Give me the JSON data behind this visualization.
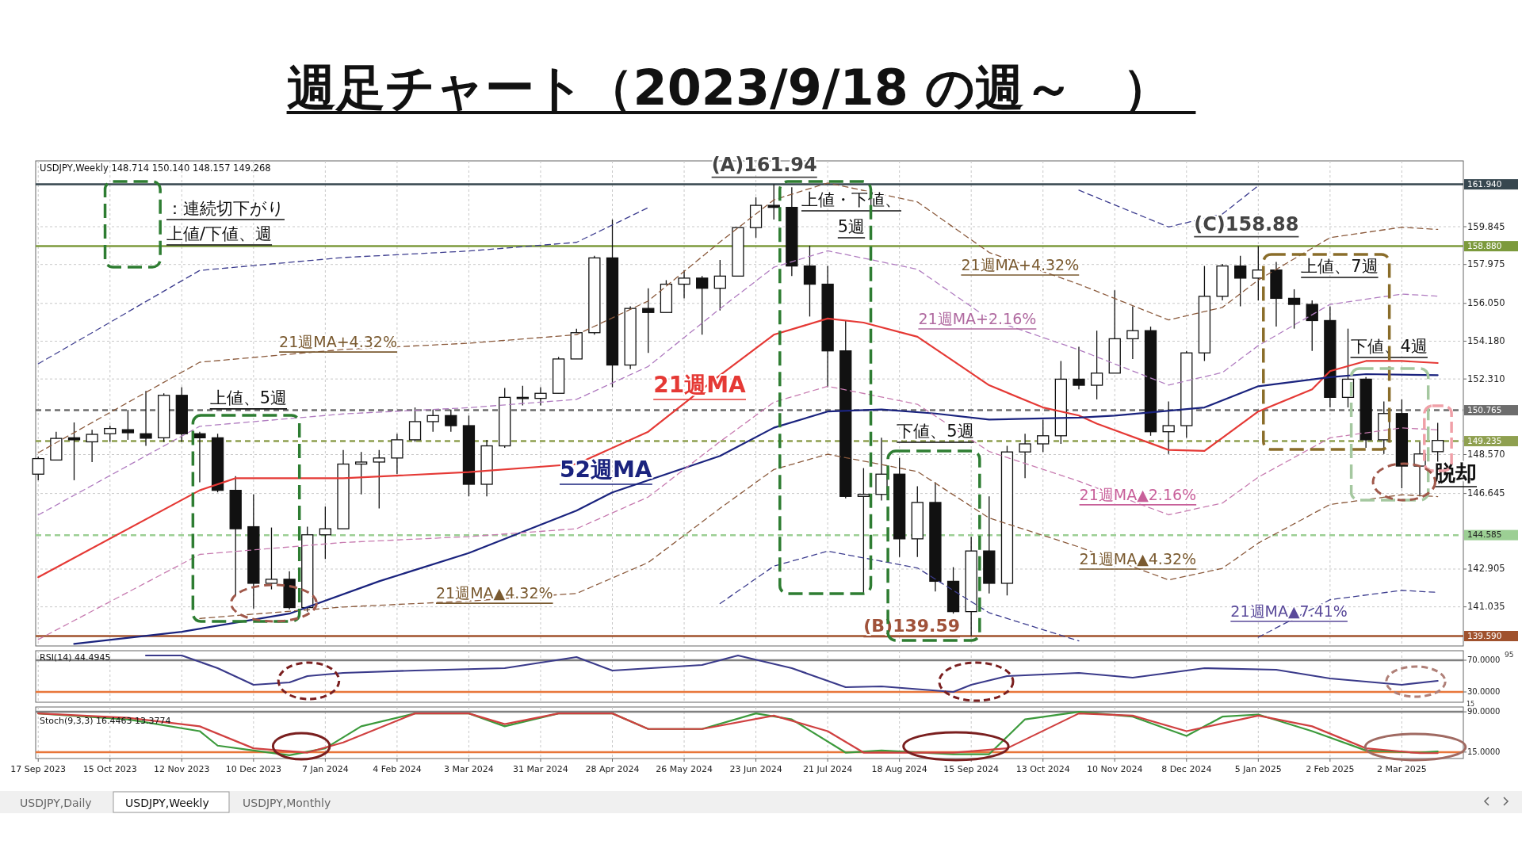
{
  "chart_data": [
    {
      "type": "candlestick",
      "title": "週足チャート（2023/9/18 の週～　）",
      "subtitle": "USDJPY,Weekly  148.714 150.140 148.157 149.268",
      "x": [
        "2023-09-17",
        "2023-09-24",
        "2023-10-01",
        "2023-10-08",
        "2023-10-15",
        "2023-10-22",
        "2023-10-29",
        "2023-11-05",
        "2023-11-12",
        "2023-11-19",
        "2023-11-26",
        "2023-12-03",
        "2023-12-10",
        "2023-12-17",
        "2023-12-24",
        "2023-12-31",
        "2024-01-07",
        "2024-01-14",
        "2024-01-21",
        "2024-01-28",
        "2024-02-04",
        "2024-02-11",
        "2024-02-18",
        "2024-02-25",
        "2024-03-03",
        "2024-03-10",
        "2024-03-17",
        "2024-03-24",
        "2024-03-31",
        "2024-04-07",
        "2024-04-14",
        "2024-04-21",
        "2024-04-28",
        "2024-05-05",
        "2024-05-12",
        "2024-05-19",
        "2024-05-26",
        "2024-06-02",
        "2024-06-09",
        "2024-06-16",
        "2024-06-23",
        "2024-06-30",
        "2024-07-07",
        "2024-07-14",
        "2024-07-21",
        "2024-07-28",
        "2024-08-04",
        "2024-08-11",
        "2024-08-18",
        "2024-08-25",
        "2024-09-01",
        "2024-09-08",
        "2024-09-15",
        "2024-09-22",
        "2024-09-29",
        "2024-10-06",
        "2024-10-13",
        "2024-10-20",
        "2024-10-27",
        "2024-11-03",
        "2024-11-10",
        "2024-11-17",
        "2024-11-24",
        "2024-12-01",
        "2024-12-08",
        "2024-12-15",
        "2024-12-22",
        "2024-12-29",
        "2025-01-05",
        "2025-01-12",
        "2025-01-19",
        "2025-01-26",
        "2025-02-02",
        "2025-02-09",
        "2025-02-16",
        "2025-02-23",
        "2025-03-02",
        "2025-03-09",
        "2025-03-16"
      ],
      "ohlc": [
        [
          147.6,
          148.46,
          147.3,
          148.37
        ],
        [
          148.3,
          149.7,
          148.3,
          149.37
        ],
        [
          149.4,
          150.16,
          147.3,
          149.3
        ],
        [
          149.2,
          149.8,
          148.2,
          149.57
        ],
        [
          149.6,
          150.0,
          149.2,
          149.86
        ],
        [
          149.8,
          150.78,
          149.3,
          149.65
        ],
        [
          149.6,
          151.72,
          149.0,
          149.38
        ],
        [
          149.4,
          151.6,
          149.2,
          151.5
        ],
        [
          151.5,
          151.9,
          149.2,
          149.6
        ],
        [
          149.6,
          149.7,
          147.2,
          149.4
        ],
        [
          149.4,
          149.6,
          146.7,
          146.8
        ],
        [
          146.8,
          147.5,
          141.6,
          144.9
        ],
        [
          145.0,
          146.6,
          140.95,
          142.2
        ],
        [
          142.2,
          144.96,
          141.9,
          142.4
        ],
        [
          142.4,
          142.8,
          140.9,
          141.0
        ],
        [
          141.0,
          145.0,
          140.8,
          144.6
        ],
        [
          144.6,
          146.0,
          143.4,
          144.9
        ],
        [
          144.9,
          148.8,
          144.9,
          148.1
        ],
        [
          148.1,
          148.7,
          146.6,
          148.2
        ],
        [
          148.2,
          148.8,
          145.9,
          148.4
        ],
        [
          148.4,
          149.6,
          147.6,
          149.3
        ],
        [
          149.3,
          150.9,
          149.2,
          150.2
        ],
        [
          150.2,
          150.8,
          149.7,
          150.5
        ],
        [
          150.5,
          150.8,
          149.7,
          150.0
        ],
        [
          150.0,
          150.5,
          146.5,
          147.1
        ],
        [
          147.1,
          149.3,
          146.5,
          149.0
        ],
        [
          149.0,
          151.86,
          148.9,
          151.4
        ],
        [
          151.4,
          151.97,
          151.0,
          151.35
        ],
        [
          151.35,
          151.9,
          151.0,
          151.6
        ],
        [
          151.6,
          153.4,
          151.6,
          153.3
        ],
        [
          153.3,
          154.8,
          153.3,
          154.6
        ],
        [
          154.6,
          158.4,
          154.5,
          158.3
        ],
        [
          158.3,
          160.2,
          151.9,
          153.0
        ],
        [
          153.0,
          155.9,
          152.8,
          155.8
        ],
        [
          155.8,
          156.8,
          153.6,
          155.6
        ],
        [
          155.6,
          157.2,
          155.6,
          157.0
        ],
        [
          157.0,
          157.7,
          156.3,
          157.3
        ],
        [
          157.3,
          157.4,
          154.5,
          156.8
        ],
        [
          156.8,
          158.2,
          155.7,
          157.4
        ],
        [
          157.4,
          159.8,
          157.4,
          159.8
        ],
        [
          159.8,
          161.3,
          159.3,
          160.9
        ],
        [
          160.9,
          161.94,
          160.2,
          160.8
        ],
        [
          160.8,
          161.8,
          157.4,
          157.9
        ],
        [
          157.9,
          158.9,
          155.4,
          157.0
        ],
        [
          157.0,
          157.9,
          151.9,
          153.7
        ],
        [
          153.7,
          155.2,
          146.4,
          146.5
        ],
        [
          146.5,
          147.9,
          141.7,
          146.6
        ],
        [
          146.6,
          149.4,
          146.3,
          147.6
        ],
        [
          147.6,
          148.4,
          143.5,
          144.4
        ],
        [
          144.4,
          147.0,
          143.5,
          146.2
        ],
        [
          146.2,
          147.2,
          141.8,
          142.3
        ],
        [
          142.3,
          143.0,
          140.7,
          140.8
        ],
        [
          140.8,
          144.5,
          139.59,
          143.8
        ],
        [
          143.8,
          146.5,
          141.7,
          142.2
        ],
        [
          142.2,
          149.0,
          141.6,
          148.7
        ],
        [
          148.7,
          149.6,
          147.4,
          149.1
        ],
        [
          149.1,
          150.3,
          148.7,
          149.5
        ],
        [
          149.5,
          153.2,
          149.1,
          152.3
        ],
        [
          152.3,
          153.9,
          151.8,
          152.0
        ],
        [
          152.0,
          154.7,
          151.3,
          152.6
        ],
        [
          152.6,
          156.7,
          152.6,
          154.3
        ],
        [
          154.3,
          155.9,
          153.3,
          154.7
        ],
        [
          154.7,
          154.9,
          149.5,
          149.7
        ],
        [
          149.7,
          151.2,
          148.6,
          150.0
        ],
        [
          150.0,
          153.7,
          149.4,
          153.6
        ],
        [
          153.6,
          157.9,
          153.2,
          156.4
        ],
        [
          156.4,
          158.0,
          156.2,
          157.9
        ],
        [
          157.9,
          158.4,
          155.9,
          157.3
        ],
        [
          157.3,
          158.88,
          156.2,
          157.7
        ],
        [
          157.7,
          158.1,
          154.9,
          156.3
        ],
        [
          156.3,
          156.75,
          154.8,
          156.0
        ],
        [
          156.0,
          156.2,
          153.7,
          155.2
        ],
        [
          155.2,
          155.9,
          150.9,
          151.4
        ],
        [
          151.4,
          154.8,
          150.9,
          152.3
        ],
        [
          152.3,
          152.4,
          148.9,
          149.3
        ],
        [
          149.3,
          151.2,
          148.6,
          150.6
        ],
        [
          150.6,
          151.3,
          146.9,
          148.0
        ],
        [
          148.0,
          149.2,
          146.5,
          148.6
        ],
        [
          148.714,
          150.14,
          148.157,
          149.268
        ]
      ],
      "series": [
        {
          "type": "line",
          "color": "#e53935",
          "x": [
            "2023-09-17",
            "2023-11-19",
            "2023-12-03",
            "2024-01-14",
            "2024-03-03",
            "2024-04-14",
            "2024-05-12",
            "2024-06-09",
            "2024-06-30",
            "2024-07-21",
            "2024-08-04",
            "2024-08-25",
            "2024-09-08",
            "2024-09-22",
            "2024-10-13",
            "2024-10-27",
            "2024-11-03",
            "2024-12-01",
            "2024-12-15",
            "2024-12-22",
            "2025-01-05",
            "2025-01-26",
            "2025-02-02",
            "2025-02-16",
            "2025-03-02",
            "2025-03-16"
          ],
          "values": [
            142.5,
            146.8,
            147.4,
            147.4,
            147.7,
            148.1,
            149.7,
            152.5,
            154.5,
            155.3,
            155.1,
            154.4,
            153.2,
            152.0,
            150.9,
            150.5,
            150.1,
            148.8,
            148.75,
            149.4,
            150.7,
            151.8,
            152.7,
            153.2,
            153.2,
            153.1
          ]
        },
        {
          "type": "line",
          "color": "#1a237e",
          "x": [
            "2023-10-01",
            "2023-11-12",
            "2023-12-24",
            "2024-01-28",
            "2024-03-03",
            "2024-04-14",
            "2024-04-28",
            "2024-06-09",
            "2024-06-30",
            "2024-07-21",
            "2024-08-11",
            "2024-09-01",
            "2024-09-22",
            "2024-10-27",
            "2024-11-10",
            "2024-12-15",
            "2025-01-05",
            "2025-02-02",
            "2025-02-16",
            "2025-03-16"
          ],
          "values": [
            139.2,
            139.8,
            140.7,
            142.3,
            143.7,
            145.8,
            146.7,
            148.5,
            149.9,
            150.7,
            150.8,
            150.6,
            150.3,
            150.4,
            150.5,
            150.9,
            151.95,
            152.4,
            152.55,
            152.5
          ]
        },
        {
          "type": "line",
          "color": "#b07cc0",
          "line_style": "dashed",
          "x": [
            "2023-09-17",
            "2023-11-19",
            "2024-01-14",
            "2024-03-03",
            "2024-04-14",
            "2024-05-12",
            "2024-06-09",
            "2024-06-30",
            "2024-07-21",
            "2024-08-25",
            "2024-09-22",
            "2024-10-27",
            "2024-12-01",
            "2024-12-22",
            "2025-01-05",
            "2025-02-02",
            "2025-03-02",
            "2025-03-16"
          ],
          "values": [
            145.58,
            149.97,
            150.58,
            150.89,
            151.3,
            152.93,
            155.79,
            157.84,
            158.65,
            157.74,
            155.28,
            153.75,
            152.01,
            152.63,
            153.96,
            156.0,
            156.51,
            156.41
          ]
        },
        {
          "type": "line",
          "color": "#8b5a3c",
          "line_style": "dashed",
          "x": [
            "2023-09-17",
            "2023-11-19",
            "2024-01-14",
            "2024-03-03",
            "2024-04-14",
            "2024-05-12",
            "2024-06-09",
            "2024-06-30",
            "2024-07-21",
            "2024-08-25",
            "2024-09-22",
            "2024-10-27",
            "2024-12-01",
            "2024-12-22",
            "2025-01-05",
            "2025-02-02",
            "2025-03-02",
            "2025-03-16"
          ],
          "values": [
            148.66,
            153.14,
            153.77,
            154.08,
            154.5,
            156.17,
            159.09,
            161.17,
            162.01,
            161.07,
            158.57,
            157.0,
            155.23,
            155.85,
            157.21,
            159.3,
            159.82,
            159.71
          ]
        },
        {
          "type": "line",
          "color": "#c77bb0",
          "line_style": "dashed",
          "x": [
            "2023-09-17",
            "2023-11-19",
            "2024-01-14",
            "2024-03-03",
            "2024-04-14",
            "2024-05-12",
            "2024-06-09",
            "2024-06-30",
            "2024-07-21",
            "2024-08-25",
            "2024-09-22",
            "2024-10-27",
            "2024-12-01",
            "2024-12-22",
            "2025-01-05",
            "2025-02-02",
            "2025-03-02",
            "2025-03-16"
          ],
          "values": [
            139.42,
            143.63,
            144.22,
            144.51,
            144.9,
            146.47,
            149.21,
            151.16,
            151.95,
            151.06,
            148.72,
            147.25,
            145.59,
            146.17,
            147.45,
            149.4,
            149.89,
            149.79
          ]
        },
        {
          "type": "line",
          "color": "#8b5a3c",
          "line_style": "dashed",
          "x": [
            "2023-11-19",
            "2024-01-14",
            "2024-03-03",
            "2024-04-14",
            "2024-05-12",
            "2024-06-09",
            "2024-06-30",
            "2024-07-21",
            "2024-08-25",
            "2024-09-22",
            "2024-10-27",
            "2024-12-01",
            "2024-12-22",
            "2025-01-05",
            "2025-02-02",
            "2025-03-02",
            "2025-03-16"
          ],
          "values": [
            140.46,
            141.03,
            141.32,
            141.7,
            143.23,
            145.91,
            147.83,
            148.59,
            147.73,
            145.43,
            144.0,
            142.37,
            142.94,
            144.19,
            146.1,
            146.58,
            146.49
          ]
        },
        {
          "type": "line",
          "color": "#3d3d8f",
          "line_style": "dashed",
          "x": [
            "2024-06-09",
            "2024-06-30",
            "2024-07-21",
            "2024-08-25",
            "2024-09-22",
            "2024-10-27"
          ],
          "values": [
            141.2,
            143.05,
            143.79,
            142.96,
            140.74,
            139.35
          ]
        },
        {
          "type": "line",
          "color": "#3d3d8f",
          "line_style": "dashed",
          "x": [
            "2025-01-05",
            "2025-02-02",
            "2025-03-02",
            "2025-03-16"
          ],
          "values": [
            139.53,
            141.39,
            141.85,
            141.75
          ]
        },
        {
          "type": "line",
          "color": "#3d3d8f",
          "line_style": "dashed",
          "x": [
            "2023-09-17",
            "2023-11-19",
            "2024-01-14",
            "2024-03-03",
            "2024-04-14",
            "2024-05-12"
          ],
          "values": [
            153.06,
            157.68,
            158.32,
            158.64,
            159.07,
            160.79
          ]
        },
        {
          "type": "line",
          "color": "#3d3d8f",
          "line_style": "dashed",
          "x": [
            "2024-10-27",
            "2024-12-01",
            "2024-12-22",
            "2025-01-05"
          ],
          "values": [
            161.65,
            159.83,
            160.47,
            161.87
          ]
        }
      ],
      "xlim": [
        "2023-09-16",
        "2025-03-26"
      ],
      "ylim": [
        139.1,
        163.1
      ],
      "yticks": [
        {
          "value": 159.845,
          "label": "159.845"
        },
        {
          "value": 157.975,
          "label": "157.975"
        },
        {
          "value": 156.05,
          "label": "156.050"
        },
        {
          "value": 154.18,
          "label": "154.180"
        },
        {
          "value": 152.31,
          "label": "152.310"
        },
        {
          "value": 148.57,
          "label": "148.570"
        },
        {
          "value": 146.645,
          "label": "146.645"
        },
        {
          "value": 142.905,
          "label": "142.905"
        },
        {
          "value": 141.035,
          "label": "141.035"
        }
      ],
      "tick_labels": "y",
      "grid": true,
      "ref_lines": [
        {
          "axis": "y",
          "value": 161.94,
          "label": "161.940",
          "color": "#37474f",
          "line_style": "solid"
        },
        {
          "axis": "y",
          "value": 158.88,
          "label": "158.880",
          "color": "#7c9a3c",
          "line_style": "solid"
        },
        {
          "axis": "y",
          "value": 150.765,
          "label": "150.765",
          "color": "#6d6d6d",
          "line_style": "dashed"
        },
        {
          "axis": "y",
          "value": 149.235,
          "label": "149.235",
          "color": "#8fa050",
          "line_style": "dashed"
        },
        {
          "axis": "y",
          "value": 144.585,
          "label": "144.585",
          "color": "#9ccf94",
          "line_style": "dashed"
        },
        {
          "axis": "y",
          "value": 139.59,
          "label": "139.590",
          "color": "#a0522d",
          "line_style": "solid"
        }
      ],
      "annotations": [
        {
          "text": "(A)161.94",
          "x": "2024-06-30",
          "y": 161.94
        },
        {
          "text": "(B)139.59",
          "x": "2024-09-15",
          "y": 139.59
        },
        {
          "text": "(C)158.88",
          "x": "2025-01-05",
          "y": 158.88
        },
        {
          "text": "上値、5週",
          "x": "2023-12-08",
          "y": 150.79
        },
        {
          "text": "下値、5週",
          "x": "2024-09-01",
          "y": 149.14
        },
        {
          "text": "下値、4週",
          "x": "2025-02-25",
          "y": 153.1
        },
        {
          "text": "21週MA",
          "x": "2024-06-01",
          "y": 151.65
        },
        {
          "text": "52週MA",
          "x": "2024-05-14",
          "y": 147.22
        },
        {
          "text": "21週MA+4.32%",
          "x": "2024-01-12",
          "y": 153.88
        },
        {
          "text": "21週MA▲2.16%",
          "x": "2024-11-19",
          "y": 146.32
        },
        {
          "text": "21週MA▲4.32%",
          "x": "2024-11-19",
          "y": 143.14
        },
        {
          "text": "21週MA▲4.32%",
          "x": "2024-03-13",
          "y": 141.45
        },
        {
          "text": "21週MA▲7.41%",
          "x": "2025-01-17",
          "y": 140.55
        },
        "上値・下値、",
        "5週",
        "上値、7週",
        "脱却",
        "21週MA+4.32%",
        "21週MA+2.16%",
        "：連続切下がり",
        "上値/下値、週"
      ]
    },
    {
      "type": "line",
      "title": "RSI(14) 44.4945",
      "series": [
        {
          "color": "#3a3a8a",
          "x": [
            "2023-10-29",
            "2023-11-12",
            "2023-11-26",
            "2023-12-10",
            "2023-12-24",
            "2023-12-31",
            "2024-01-14",
            "2024-02-11",
            "2024-03-17",
            "2024-04-14",
            "2024-04-28",
            "2024-06-02",
            "2024-06-16",
            "2024-07-07",
            "2024-07-28",
            "2024-08-11",
            "2024-09-08",
            "2024-09-15",
            "2024-09-29",
            "2024-10-27",
            "2024-11-17",
            "2024-12-15",
            "2025-01-12",
            "2025-02-02",
            "2025-03-02",
            "2025-03-16"
          ],
          "values": [
            76,
            76,
            60,
            39,
            42,
            50,
            54,
            57,
            60,
            74,
            57,
            64,
            76,
            60,
            36,
            37,
            30,
            39,
            50,
            54,
            48,
            60,
            58,
            47,
            39,
            44
          ]
        }
      ],
      "xlim": [
        "2023-09-16",
        "2025-03-26"
      ],
      "ylim": [
        17,
        82
      ],
      "yticks": [
        {
          "value": 70,
          "label": "70.0000"
        },
        {
          "value": 30,
          "label": "30.0000"
        }
      ],
      "tick_labels": "y",
      "grid": "x",
      "ref_lines": [
        {
          "axis": "y",
          "value": 70,
          "color": "#808080",
          "line_style": "solid"
        },
        {
          "axis": "y",
          "value": 30,
          "color": "#e8763a",
          "line_style": "solid"
        }
      ],
      "annotations": [
        "95",
        "15"
      ]
    },
    {
      "type": "line",
      "title": "Stoch(9,3,3) 16.4463 13.3774",
      "series": [
        {
          "color": "#3c9a3c",
          "x": [
            "2023-09-17",
            "2023-10-22",
            "2023-11-19",
            "2023-11-26",
            "2023-12-10",
            "2023-12-24",
            "2024-01-07",
            "2024-01-21",
            "2024-02-11",
            "2024-03-03",
            "2024-03-17",
            "2024-04-07",
            "2024-04-28",
            "2024-05-12",
            "2024-06-02",
            "2024-06-23",
            "2024-07-07",
            "2024-07-28",
            "2024-08-11",
            "2024-09-08",
            "2024-09-22",
            "2024-10-06",
            "2024-10-27",
            "2024-11-17",
            "2024-12-08",
            "2024-12-22",
            "2025-01-05",
            "2025-01-26",
            "2025-02-16",
            "2025-03-09",
            "2025-03-16"
          ],
          "values": [
            87,
            76,
            54,
            27,
            18,
            9,
            22,
            63,
            87,
            87,
            63,
            87,
            87,
            58,
            58,
            87,
            76,
            14,
            18,
            11,
            11,
            76,
            90,
            81,
            45,
            81,
            85,
            54,
            18,
            14,
            16
          ]
        },
        {
          "color": "#d04040",
          "x": [
            "2023-09-17",
            "2023-10-22",
            "2023-11-19",
            "2023-12-10",
            "2023-12-31",
            "2024-01-14",
            "2024-02-11",
            "2024-03-03",
            "2024-03-17",
            "2024-04-07",
            "2024-04-28",
            "2024-05-12",
            "2024-06-02",
            "2024-06-30",
            "2024-07-21",
            "2024-08-04",
            "2024-09-08",
            "2024-09-29",
            "2024-10-27",
            "2024-11-17",
            "2024-12-08",
            "2025-01-05",
            "2025-01-26",
            "2025-02-16",
            "2025-03-09",
            "2025-03-16"
          ],
          "values": [
            87,
            79,
            63,
            22,
            14,
            33,
            87,
            87,
            67,
            87,
            87,
            58,
            58,
            83,
            54,
            14,
            14,
            22,
            87,
            83,
            54,
            83,
            63,
            22,
            13,
            13
          ]
        }
      ],
      "xlim": [
        "2023-09-16",
        "2025-03-26"
      ],
      "ylim": [
        3,
        99
      ],
      "xticks": [
        {
          "value": "2023-09-17",
          "label": "17 Sep 2023"
        },
        {
          "value": "2023-10-15",
          "label": "15 Oct 2023"
        },
        {
          "value": "2023-11-12",
          "label": "12 Nov 2023"
        },
        {
          "value": "2023-12-10",
          "label": "10 Dec 2023"
        },
        {
          "value": "2024-01-07",
          "label": "7 Jan 2024"
        },
        {
          "value": "2024-02-04",
          "label": "4 Feb 2024"
        },
        {
          "value": "2024-03-03",
          "label": "3 Mar 2024"
        },
        {
          "value": "2024-03-31",
          "label": "31 Mar 2024"
        },
        {
          "value": "2024-04-28",
          "label": "28 Apr 2024"
        },
        {
          "value": "2024-05-26",
          "label": "26 May 2024"
        },
        {
          "value": "2024-06-23",
          "label": "23 Jun 2024"
        },
        {
          "value": "2024-07-21",
          "label": "21 Jul 2024"
        },
        {
          "value": "2024-08-18",
          "label": "18 Aug 2024"
        },
        {
          "value": "2024-09-15",
          "label": "15 Sep 2024"
        },
        {
          "value": "2024-10-13",
          "label": "13 Oct 2024"
        },
        {
          "value": "2024-11-10",
          "label": "10 Nov 2024"
        },
        {
          "value": "2024-12-08",
          "label": "8 Dec 2024"
        },
        {
          "value": "2025-01-05",
          "label": "5 Jan 2025"
        },
        {
          "value": "2025-02-02",
          "label": "2 Feb 2025"
        },
        {
          "value": "2025-03-02",
          "label": "2 Mar 2025"
        }
      ],
      "yticks": [
        {
          "value": 90,
          "label": "90.0000"
        },
        {
          "value": 15,
          "label": "15.0000"
        }
      ],
      "grid": "x",
      "ref_lines": [
        {
          "axis": "y",
          "value": 90,
          "color": "#808080",
          "line_style": "solid"
        },
        {
          "axis": "y",
          "value": 15,
          "color": "#e8763a",
          "line_style": "solid"
        }
      ],
      "annotations": [
        "USDJPY,Daily",
        "USDJPY,Weekly",
        "USDJPY,Monthly"
      ]
    }
  ]
}
